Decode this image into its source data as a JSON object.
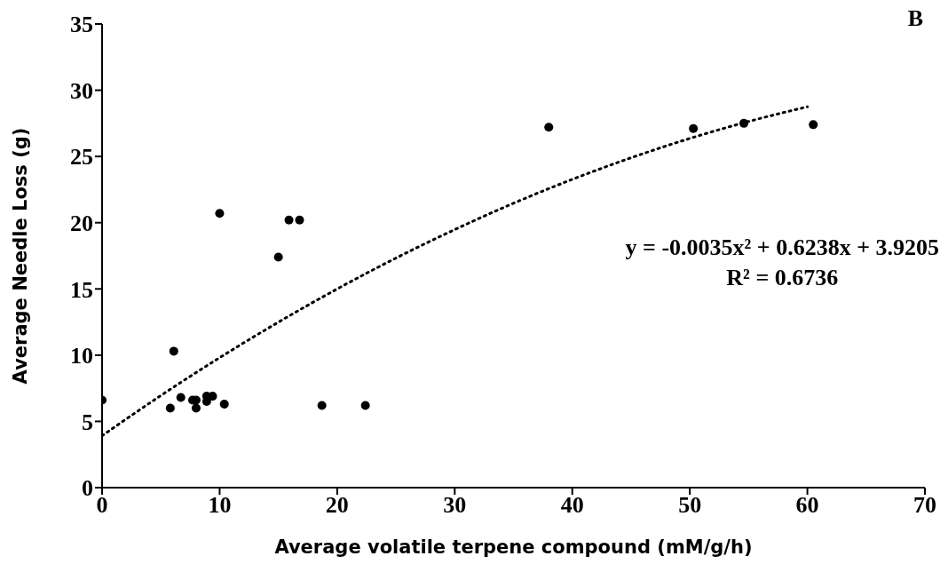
{
  "chart_data": {
    "type": "scatter",
    "xlabel": "Average volatile terpene compound (mM/g/h)",
    "ylabel": "Average Needle Loss (g)",
    "xlim": [
      0,
      70
    ],
    "xticks": [
      0,
      10,
      20,
      30,
      40,
      50,
      60,
      70
    ],
    "ylim": [
      0,
      35
    ],
    "yticks": [
      0,
      5,
      10,
      15,
      20,
      25,
      30,
      35
    ],
    "series": [
      {
        "color": "#000000",
        "marker": "circle",
        "x": [
          0,
          5.8,
          6.1,
          6.7,
          7.7,
          8.0,
          8.0,
          8.9,
          8.9,
          9.4,
          10.0,
          10.4,
          15.0,
          15.9,
          16.8,
          18.7,
          22.4,
          38.0,
          50.3,
          54.6,
          60.5
        ],
        "values": [
          6.6,
          6.0,
          10.3,
          6.8,
          6.6,
          6.6,
          6.0,
          6.5,
          6.9,
          6.9,
          20.7,
          6.3,
          17.4,
          20.2,
          20.2,
          6.2,
          6.2,
          27.2,
          27.1,
          27.5,
          27.4
        ]
      },
      {
        "type": "line",
        "color": "#000000",
        "marker": "none",
        "line_style": "dotted",
        "x": [
          0,
          5,
          10,
          15,
          20,
          25,
          30,
          35,
          40,
          45,
          50,
          55,
          60
        ],
        "values": [
          3.92,
          6.95,
          9.81,
          12.49,
          15.0,
          17.33,
          19.48,
          21.47,
          23.27,
          24.9,
          26.36,
          27.64,
          28.75
        ]
      }
    ],
    "annotations": [
      "B",
      "y = -0.0035x² + 0.6238x + 3.9205",
      "R² = 0.6736"
    ]
  }
}
